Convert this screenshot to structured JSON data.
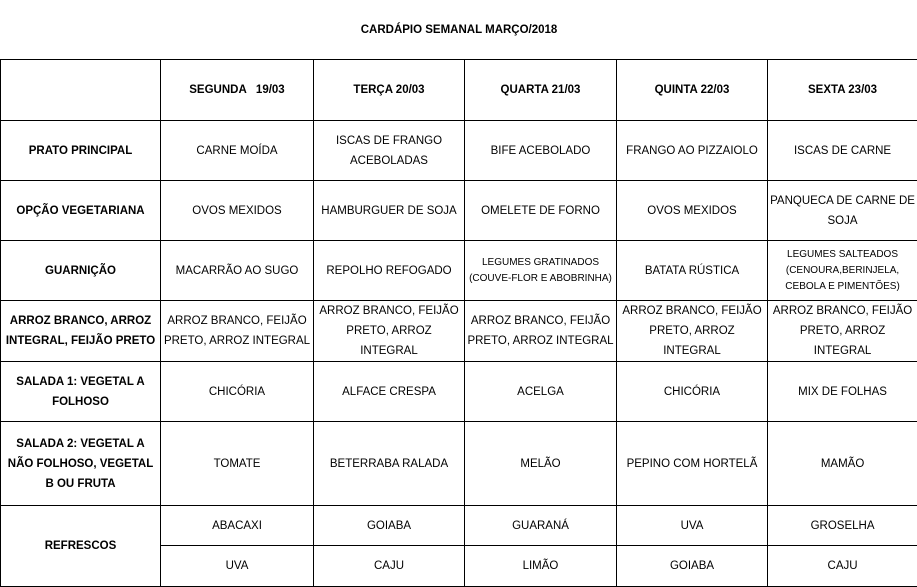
{
  "title": "CARDÁPIO SEMANAL MARÇO/2018",
  "days": [
    "SEGUNDA   19/03",
    "TERÇA 20/03",
    "QUARTA 21/03",
    "QUINTA 22/03",
    "SEXTA 23/03"
  ],
  "rows": [
    {
      "label": "PRATO PRINCIPAL",
      "cells": [
        "CARNE MOÍDA",
        "ISCAS DE FRANGO ACEBOLADAS",
        "BIFE ACEBOLADO",
        "FRANGO AO PIZZAIOLO",
        "ISCAS DE CARNE"
      ]
    },
    {
      "label": "OPÇÃO VEGETARIANA",
      "cells": [
        "OVOS MEXIDOS",
        "HAMBURGUER DE SOJA",
        "OMELETE DE FORNO",
        "OVOS MEXIDOS",
        "PANQUECA DE CARNE DE SOJA"
      ]
    },
    {
      "label": "GUARNIÇÃO",
      "cells": [
        "MACARRÃO AO SUGO",
        "REPOLHO REFOGADO",
        "LEGUMES GRATINADOS (COUVE-FLOR E ABOBRINHA)",
        "BATATA RÚSTICA",
        "LEGUMES SALTEADOS (CENOURA,BERINJELA, CEBOLA E PIMENTÕES)"
      ]
    },
    {
      "label": "ARROZ BRANCO, ARROZ INTEGRAL, FEIJÃO PRETO",
      "cells": [
        "ARROZ BRANCO, FEIJÃO PRETO, ARROZ INTEGRAL",
        "ARROZ BRANCO, FEIJÃO PRETO, ARROZ INTEGRAL",
        "ARROZ BRANCO, FEIJÃO PRETO, ARROZ INTEGRAL",
        "ARROZ BRANCO, FEIJÃO PRETO, ARROZ INTEGRAL",
        "ARROZ BRANCO, FEIJÃO PRETO, ARROZ INTEGRAL"
      ]
    },
    {
      "label": "SALADA 1: VEGETAL A FOLHOSO",
      "cells": [
        "CHICÓRIA",
        "ALFACE CRESPA",
        "ACELGA",
        "CHICÓRIA",
        "MIX DE FOLHAS"
      ]
    },
    {
      "label": "SALADA 2: VEGETAL A NÃO FOLHOSO, VEGETAL B OU FRUTA",
      "cells": [
        "TOMATE",
        "BETERRABA RALADA",
        "MELÃO",
        "PEPINO COM HORTELÃ",
        "MAMÃO"
      ]
    }
  ],
  "refrescos": {
    "label": "REFRESCOS",
    "row1": [
      "ABACAXI",
      "GOIABA",
      "GUARANÁ",
      "UVA",
      "GROSELHA"
    ],
    "row2": [
      "UVA",
      "CAJU",
      "LIMÃO",
      "GOIABA",
      "CAJU"
    ]
  }
}
